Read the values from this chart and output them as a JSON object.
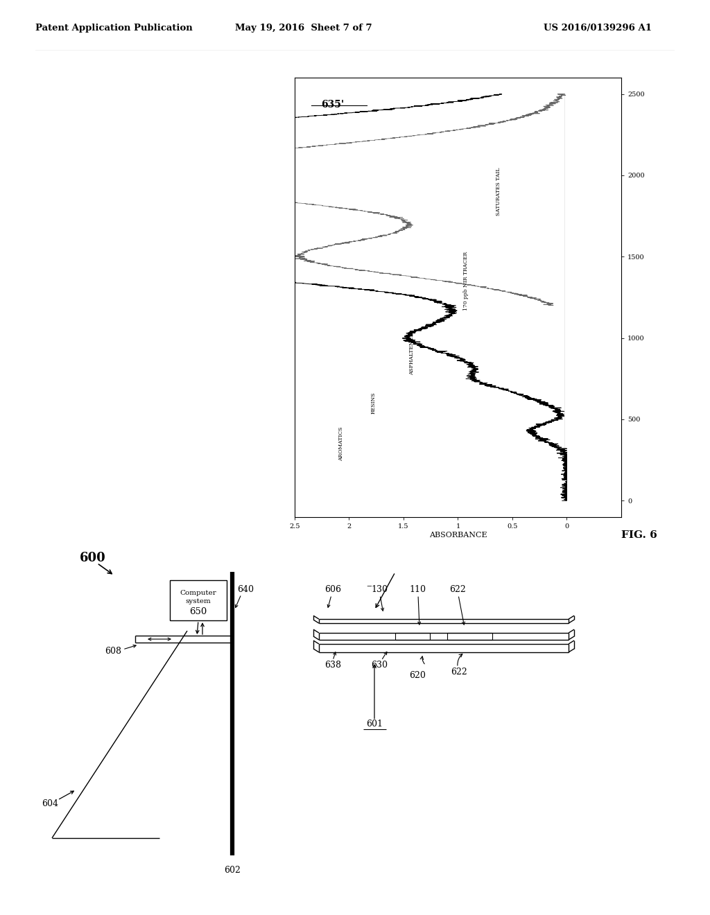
{
  "header_left": "Patent Application Publication",
  "header_mid": "May 19, 2016  Sheet 7 of 7",
  "header_right": "US 2016/0139296 A1",
  "fig_label": "FIG. 6",
  "chart_label": "635'",
  "chart_xlabel": "ABSORBANCE",
  "bg_color": "#ffffff",
  "line_color": "#000000",
  "text_color": "#000000"
}
